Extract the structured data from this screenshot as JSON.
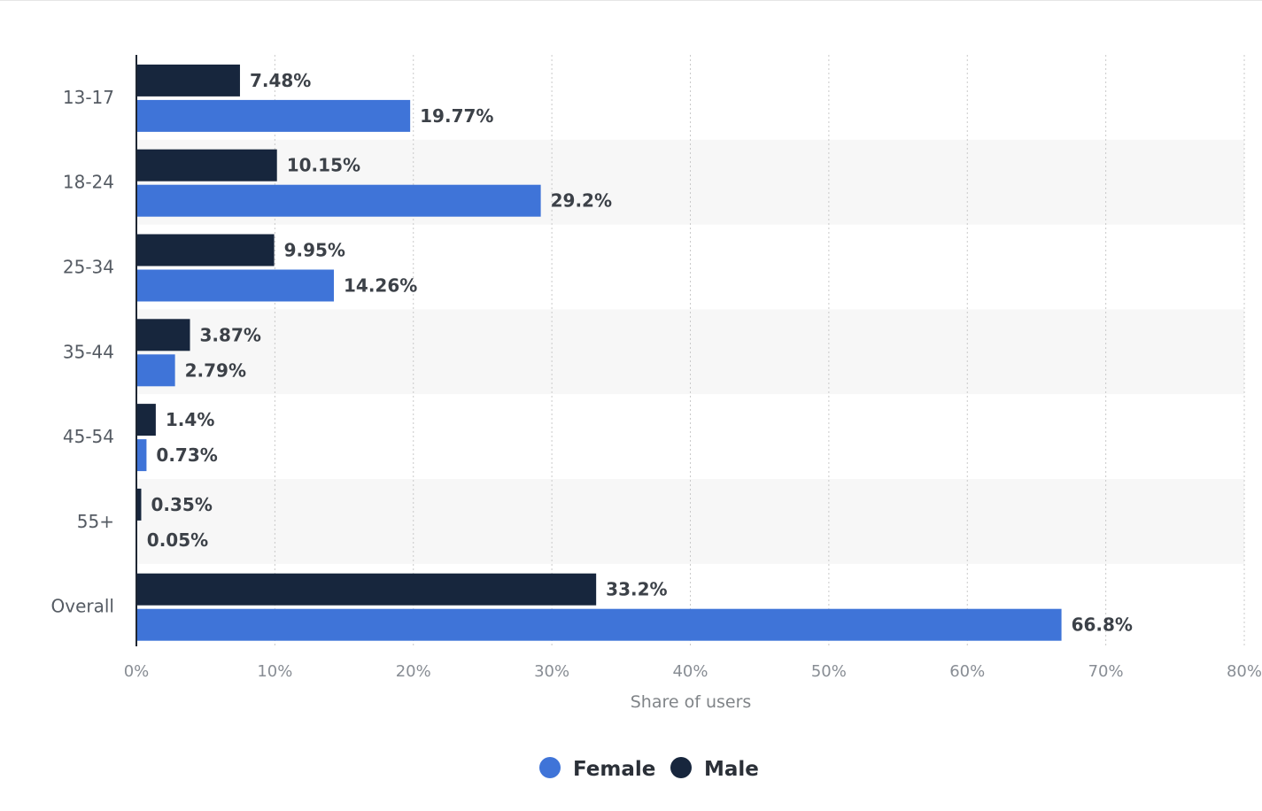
{
  "chart_data": {
    "type": "bar",
    "orientation": "horizontal",
    "categories": [
      "13-17",
      "18-24",
      "25-34",
      "35-44",
      "45-54",
      "55+",
      "Overall"
    ],
    "series": [
      {
        "name": "Male",
        "color": "#17263d",
        "values": [
          7.48,
          10.15,
          9.95,
          3.87,
          1.4,
          0.35,
          33.2
        ],
        "labels": [
          "7.48%",
          "10.15%",
          "9.95%",
          "3.87%",
          "1.4%",
          "0.35%",
          "33.2%"
        ]
      },
      {
        "name": "Female",
        "color": "#3f74d8",
        "values": [
          19.77,
          29.2,
          14.26,
          2.79,
          0.73,
          0.05,
          66.8
        ],
        "labels": [
          "19.77%",
          "29.2%",
          "14.26%",
          "2.79%",
          "0.73%",
          "0.05%",
          "66.8%"
        ]
      }
    ],
    "xlabel": "Share of users",
    "ylabel": "",
    "xlim": [
      0,
      80
    ],
    "xticks": [
      {
        "value": 0,
        "label": "0%"
      },
      {
        "value": 10,
        "label": "10%"
      },
      {
        "value": 20,
        "label": "20%"
      },
      {
        "value": 30,
        "label": "30%"
      },
      {
        "value": 40,
        "label": "40%"
      },
      {
        "value": 50,
        "label": "50%"
      },
      {
        "value": 60,
        "label": "60%"
      },
      {
        "value": 70,
        "label": "70%"
      },
      {
        "value": 80,
        "label": "80%"
      }
    ],
    "grid": true,
    "legend": {
      "placement": "bottom-center",
      "entries": [
        {
          "name": "Female",
          "color": "#3f74d8"
        },
        {
          "name": "Male",
          "color": "#17263d"
        }
      ]
    }
  }
}
